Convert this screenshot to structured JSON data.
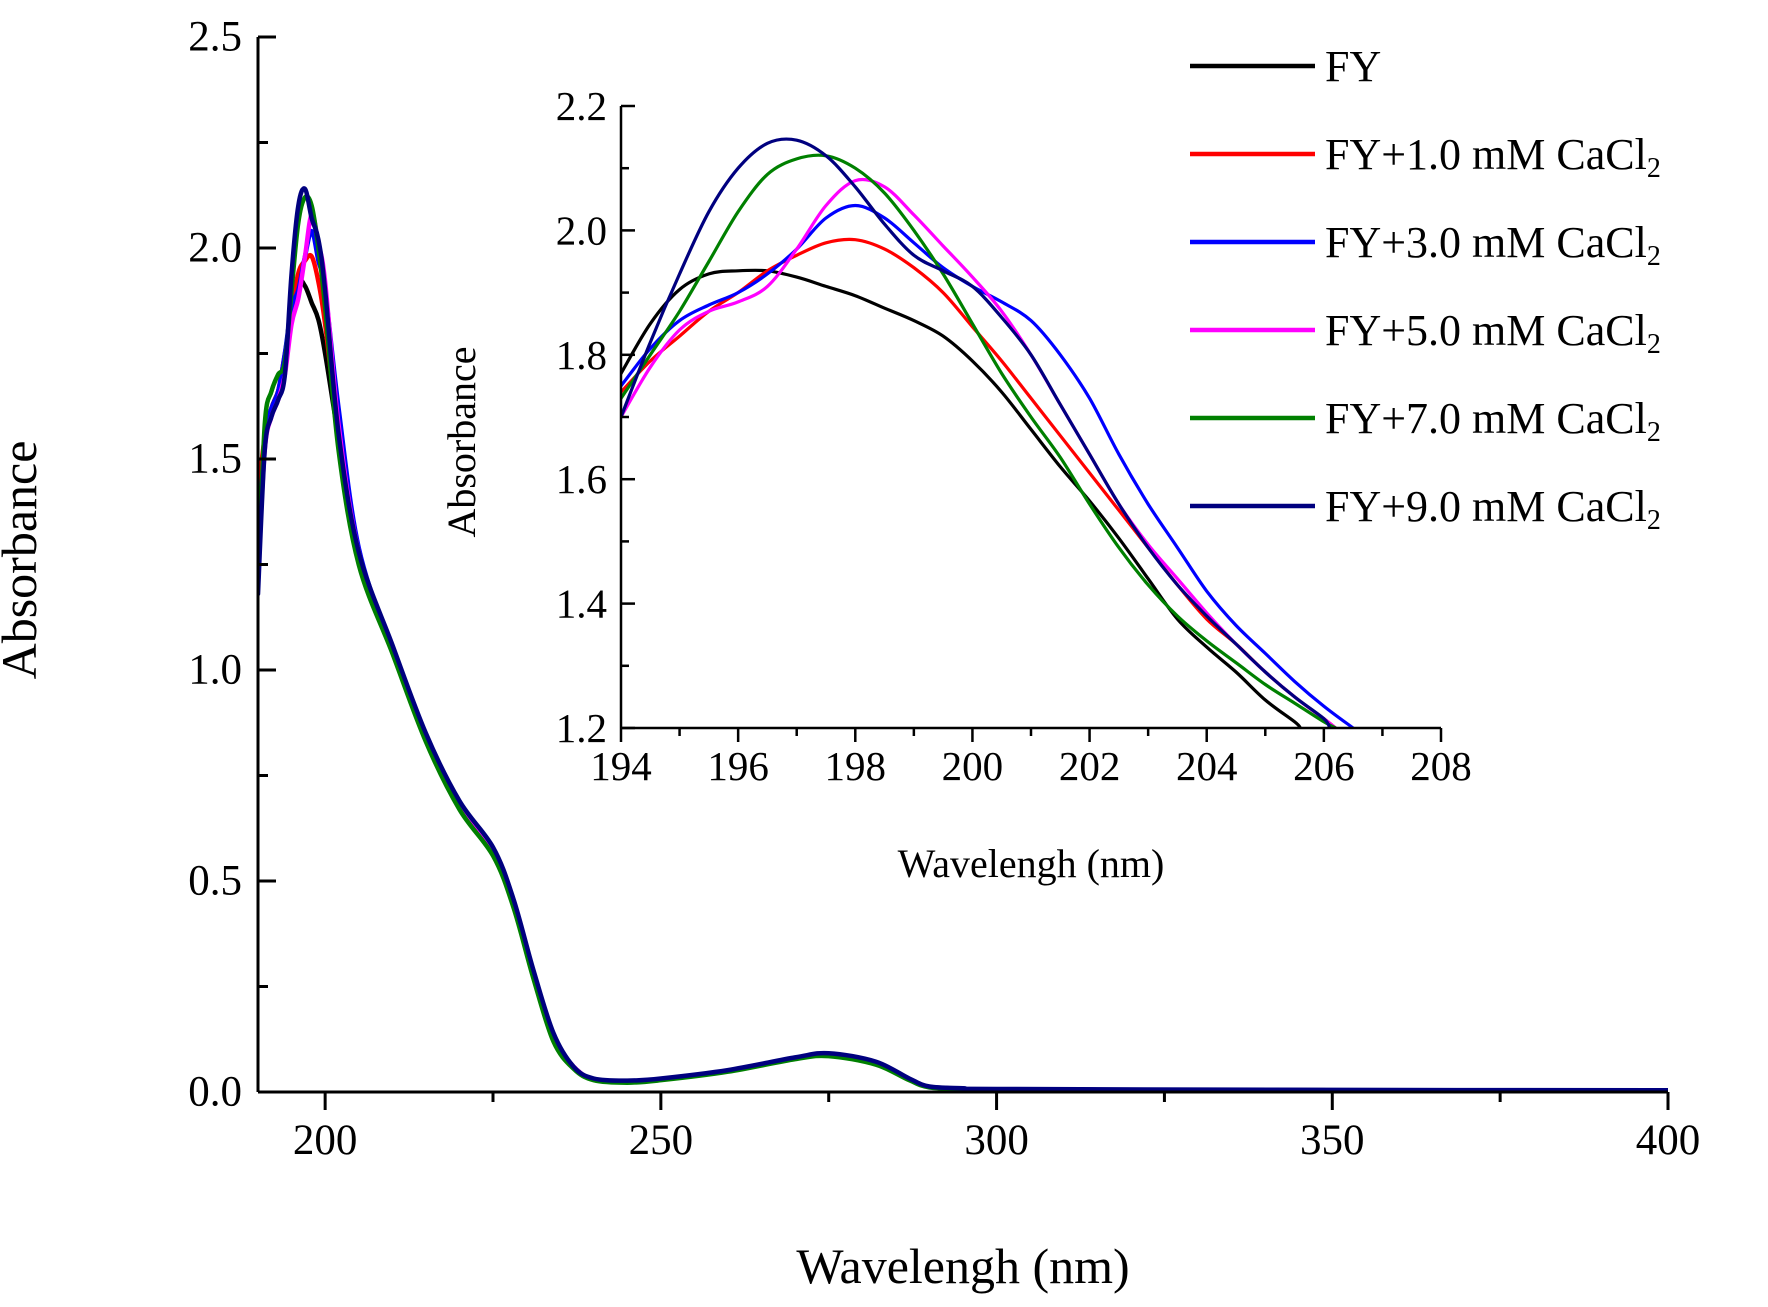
{
  "chart_data": [
    {
      "id": "main",
      "type": "line",
      "title": "",
      "xlabel": "Wavelengh (nm)",
      "ylabel": "Absorbance",
      "xlim": [
        190,
        400
      ],
      "ylim": [
        0.0,
        2.5
      ],
      "xticks": [
        200,
        250,
        300,
        350,
        400
      ],
      "yticks": [
        0.0,
        0.5,
        1.0,
        1.5,
        2.0,
        2.5
      ],
      "grid": false,
      "series": [
        {
          "name": "FY",
          "color": "#000000",
          "x": [
            190,
            191,
            192,
            193,
            194,
            195,
            196,
            197,
            198,
            199,
            200,
            202,
            205,
            210,
            215,
            220,
            225,
            228,
            231,
            234,
            237,
            240,
            245,
            250,
            260,
            270,
            275,
            282,
            287,
            290,
            295,
            300,
            350,
            400
          ],
          "y": [
            1.35,
            1.55,
            1.62,
            1.66,
            1.72,
            1.84,
            1.92,
            1.91,
            1.87,
            1.83,
            1.75,
            1.55,
            1.28,
            1.05,
            0.84,
            0.68,
            0.57,
            0.45,
            0.28,
            0.13,
            0.06,
            0.03,
            0.025,
            0.03,
            0.05,
            0.08,
            0.09,
            0.07,
            0.03,
            0.012,
            0.008,
            0.006,
            0.004,
            0.003
          ]
        },
        {
          "name": "FY+1.0 mM CaCl",
          "color": "#ff0000",
          "x": [
            190,
            191,
            192,
            193,
            194,
            195,
            196,
            197,
            198,
            199,
            200,
            202,
            205,
            210,
            215,
            220,
            225,
            228,
            231,
            234,
            237,
            240,
            245,
            250,
            260,
            270,
            275,
            282,
            287,
            290,
            295,
            300,
            350,
            400
          ],
          "y": [
            1.42,
            1.55,
            1.62,
            1.66,
            1.75,
            1.85,
            1.94,
            1.97,
            1.98,
            1.92,
            1.82,
            1.56,
            1.28,
            1.05,
            0.84,
            0.68,
            0.57,
            0.45,
            0.28,
            0.13,
            0.06,
            0.03,
            0.025,
            0.03,
            0.05,
            0.08,
            0.09,
            0.07,
            0.03,
            0.012,
            0.008,
            0.006,
            0.004,
            0.003
          ]
        },
        {
          "name": "FY+3.0 mM CaCl",
          "color": "#0000ff",
          "x": [
            190,
            191,
            192,
            193,
            194,
            195,
            196,
            197,
            198,
            199,
            200,
            202,
            205,
            210,
            215,
            220,
            225,
            228,
            231,
            234,
            237,
            240,
            245,
            250,
            260,
            270,
            275,
            282,
            287,
            290,
            295,
            300,
            350,
            400
          ],
          "y": [
            1.25,
            1.55,
            1.62,
            1.66,
            1.75,
            1.86,
            1.9,
            1.98,
            2.04,
            1.97,
            1.9,
            1.62,
            1.29,
            1.05,
            0.84,
            0.68,
            0.57,
            0.45,
            0.28,
            0.13,
            0.06,
            0.03,
            0.025,
            0.03,
            0.05,
            0.08,
            0.09,
            0.07,
            0.03,
            0.012,
            0.008,
            0.006,
            0.004,
            0.003
          ]
        },
        {
          "name": "FY+5.0 mM CaCl",
          "color": "#ff00ff",
          "x": [
            190,
            191,
            192,
            193,
            194,
            195,
            196,
            197,
            198,
            199,
            200,
            202,
            205,
            210,
            215,
            220,
            225,
            228,
            231,
            234,
            237,
            240,
            245,
            250,
            260,
            270,
            275,
            282,
            287,
            290,
            295,
            300,
            350,
            400
          ],
          "y": [
            1.22,
            1.52,
            1.6,
            1.64,
            1.7,
            1.82,
            1.88,
            1.98,
            2.08,
            2.01,
            1.92,
            1.58,
            1.28,
            1.05,
            0.84,
            0.68,
            0.57,
            0.45,
            0.28,
            0.13,
            0.06,
            0.03,
            0.025,
            0.03,
            0.05,
            0.08,
            0.09,
            0.07,
            0.03,
            0.012,
            0.008,
            0.006,
            0.004,
            0.003
          ]
        },
        {
          "name": "FY+7.0 mM CaCl",
          "color": "#008000",
          "x": [
            190,
            191,
            192,
            193,
            194,
            195,
            196,
            197,
            198,
            199,
            200,
            202,
            205,
            210,
            215,
            220,
            225,
            228,
            231,
            234,
            237,
            240,
            245,
            250,
            260,
            270,
            275,
            282,
            287,
            290,
            295,
            300,
            350,
            400
          ],
          "y": [
            1.2,
            1.58,
            1.66,
            1.7,
            1.73,
            1.9,
            2.06,
            2.12,
            2.1,
            2.0,
            1.86,
            1.52,
            1.25,
            1.04,
            0.83,
            0.67,
            0.56,
            0.44,
            0.27,
            0.12,
            0.055,
            0.028,
            0.022,
            0.028,
            0.048,
            0.078,
            0.085,
            0.065,
            0.028,
            0.011,
            0.008,
            0.006,
            0.004,
            0.003
          ]
        },
        {
          "name": "FY+9.0 mM CaCl",
          "color": "#00007f",
          "x": [
            190,
            191,
            192,
            193,
            194,
            195,
            196,
            197,
            198,
            199,
            200,
            202,
            205,
            210,
            215,
            220,
            225,
            228,
            231,
            234,
            237,
            240,
            245,
            250,
            260,
            270,
            275,
            282,
            287,
            290,
            295,
            300,
            350,
            400
          ],
          "y": [
            1.18,
            1.52,
            1.6,
            1.64,
            1.7,
            1.94,
            2.1,
            2.14,
            2.07,
            2.02,
            1.9,
            1.56,
            1.28,
            1.06,
            0.85,
            0.69,
            0.58,
            0.46,
            0.29,
            0.14,
            0.06,
            0.032,
            0.027,
            0.032,
            0.052,
            0.082,
            0.092,
            0.072,
            0.032,
            0.013,
            0.009,
            0.007,
            0.005,
            0.004
          ]
        }
      ]
    },
    {
      "id": "inset",
      "type": "line",
      "title": "",
      "xlabel": "Wavelengh (nm)",
      "ylabel": "Absorbance",
      "xlim": [
        194,
        208
      ],
      "ylim": [
        1.2,
        2.2
      ],
      "xticks": [
        194,
        196,
        198,
        200,
        202,
        204,
        206,
        208
      ],
      "yticks": [
        1.2,
        1.4,
        1.6,
        1.8,
        2.0,
        2.2
      ],
      "grid": false,
      "series": [
        {
          "name": "FY",
          "color": "#000000",
          "x": [
            194,
            194.5,
            195,
            195.5,
            196,
            196.5,
            197,
            197.5,
            198,
            198.5,
            199,
            199.5,
            200,
            200.5,
            201,
            201.5,
            202,
            202.5,
            203,
            203.5,
            204,
            204.5,
            205,
            205.5,
            205.6
          ],
          "y": [
            1.77,
            1.85,
            1.905,
            1.93,
            1.935,
            1.935,
            1.925,
            1.91,
            1.895,
            1.875,
            1.855,
            1.83,
            1.79,
            1.74,
            1.68,
            1.62,
            1.565,
            1.505,
            1.44,
            1.375,
            1.33,
            1.29,
            1.245,
            1.21,
            1.2
          ]
        },
        {
          "name": "FY+1.0 mM CaCl",
          "color": "#ff0000",
          "x": [
            194,
            194.5,
            195,
            195.5,
            196,
            196.5,
            197,
            197.5,
            198,
            198.5,
            199,
            199.5,
            200,
            200.5,
            201,
            201.5,
            202,
            202.5,
            203,
            203.5,
            204,
            204.5,
            205,
            205.5,
            206,
            206.2
          ],
          "y": [
            1.74,
            1.79,
            1.83,
            1.87,
            1.9,
            1.935,
            1.96,
            1.98,
            1.985,
            1.97,
            1.94,
            1.9,
            1.845,
            1.79,
            1.73,
            1.67,
            1.61,
            1.55,
            1.49,
            1.43,
            1.375,
            1.335,
            1.29,
            1.25,
            1.215,
            1.2
          ]
        },
        {
          "name": "FY+3.0 mM CaCl",
          "color": "#0000ff",
          "x": [
            194,
            194.5,
            195,
            195.5,
            196,
            196.5,
            197,
            197.5,
            198,
            198.5,
            199,
            199.5,
            200,
            200.5,
            201,
            201.5,
            202,
            202.5,
            203,
            203.5,
            204,
            204.5,
            205,
            205.5,
            206,
            206.5
          ],
          "y": [
            1.75,
            1.81,
            1.855,
            1.88,
            1.9,
            1.93,
            1.97,
            2.02,
            2.04,
            2.02,
            1.98,
            1.94,
            1.91,
            1.885,
            1.855,
            1.8,
            1.73,
            1.64,
            1.56,
            1.49,
            1.42,
            1.365,
            1.32,
            1.275,
            1.235,
            1.2
          ]
        },
        {
          "name": "FY+5.0 mM CaCl",
          "color": "#ff00ff",
          "x": [
            194,
            194.5,
            195,
            195.5,
            196,
            196.5,
            197,
            197.5,
            198,
            198.5,
            199,
            199.5,
            200,
            200.5,
            201,
            201.5,
            202,
            202.5,
            203,
            203.5,
            204,
            204.5,
            205,
            205.5,
            206,
            206.2
          ],
          "y": [
            1.7,
            1.78,
            1.84,
            1.87,
            1.885,
            1.91,
            1.97,
            2.04,
            2.08,
            2.07,
            2.025,
            1.975,
            1.925,
            1.87,
            1.8,
            1.72,
            1.64,
            1.56,
            1.495,
            1.44,
            1.385,
            1.335,
            1.29,
            1.25,
            1.215,
            1.2
          ]
        },
        {
          "name": "FY+7.0 mM CaCl",
          "color": "#008000",
          "x": [
            194,
            194.5,
            195,
            195.5,
            196,
            196.5,
            197,
            197.5,
            198,
            198.5,
            199,
            199.5,
            200,
            200.5,
            201,
            201.5,
            202,
            202.5,
            203,
            203.5,
            204,
            204.5,
            205,
            205.5,
            206,
            206.2
          ],
          "y": [
            1.73,
            1.8,
            1.87,
            1.95,
            2.03,
            2.09,
            2.115,
            2.12,
            2.1,
            2.06,
            2.0,
            1.93,
            1.85,
            1.77,
            1.7,
            1.635,
            1.56,
            1.49,
            1.43,
            1.38,
            1.34,
            1.305,
            1.27,
            1.24,
            1.21,
            1.2
          ]
        },
        {
          "name": "FY+9.0 mM CaCl",
          "color": "#00007f",
          "x": [
            194,
            194.5,
            195,
            195.5,
            196,
            196.5,
            197,
            197.5,
            198,
            198.5,
            199,
            199.5,
            200,
            200.5,
            201,
            201.5,
            202,
            202.5,
            203,
            203.5,
            204,
            204.5,
            205,
            205.5,
            206,
            206.1
          ],
          "y": [
            1.7,
            1.82,
            1.93,
            2.03,
            2.1,
            2.14,
            2.145,
            2.12,
            2.07,
            2.01,
            1.96,
            1.935,
            1.91,
            1.86,
            1.8,
            1.72,
            1.64,
            1.56,
            1.49,
            1.43,
            1.38,
            1.335,
            1.29,
            1.25,
            1.215,
            1.2
          ]
        }
      ]
    }
  ],
  "legend": {
    "placement": "top-right",
    "subscript": "2",
    "entries": [
      {
        "label": "FY",
        "color": "#000000",
        "sub": ""
      },
      {
        "label": "FY+1.0 mM CaCl",
        "color": "#ff0000",
        "sub": "2"
      },
      {
        "label": "FY+3.0 mM CaCl",
        "color": "#0000ff",
        "sub": "2"
      },
      {
        "label": "FY+5.0 mM CaCl",
        "color": "#ff00ff",
        "sub": "2"
      },
      {
        "label": "FY+7.0 mM CaCl",
        "color": "#008000",
        "sub": "2"
      },
      {
        "label": "FY+9.0 mM CaCl",
        "color": "#00007f",
        "sub": "2"
      }
    ]
  }
}
